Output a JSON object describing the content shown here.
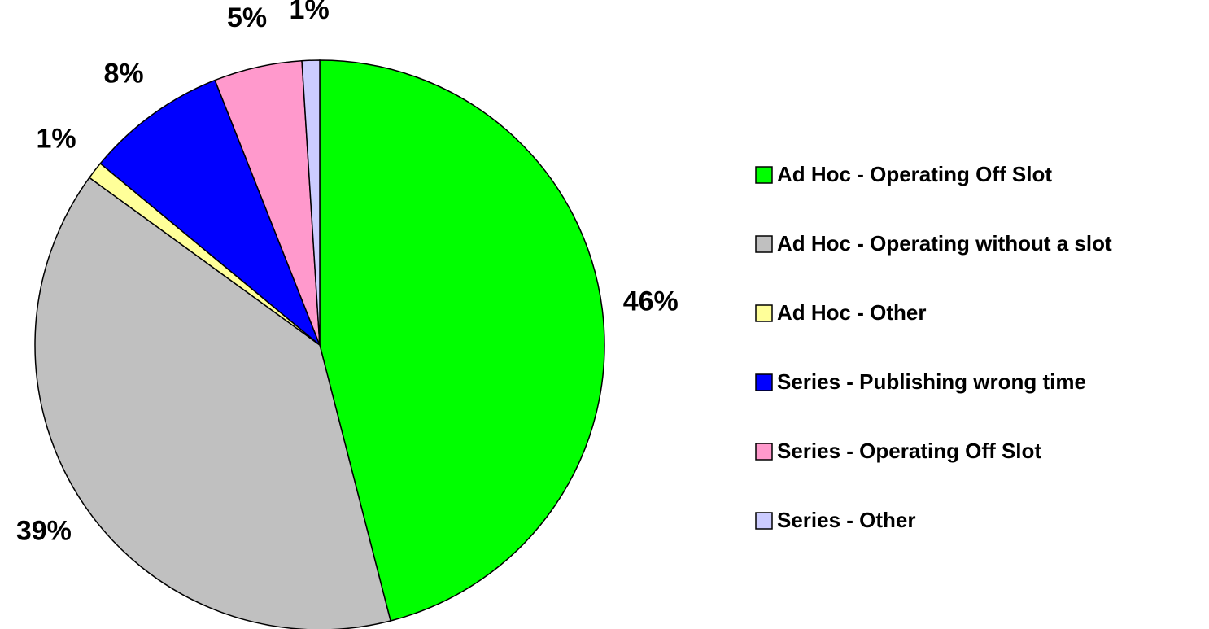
{
  "chart_data": {
    "type": "pie",
    "categories": [
      "Ad Hoc - Operating Off Slot",
      "Ad Hoc - Operating without a slot",
      "Ad Hoc - Other",
      "Series - Publishing wrong time",
      "Series - Operating Off Slot",
      "Series - Other"
    ],
    "values": [
      46,
      39,
      1,
      8,
      5,
      1
    ],
    "value_labels": [
      "46%",
      "39%",
      "1%",
      "8%",
      "5%",
      "1%"
    ],
    "colors": [
      "#00ff00",
      "#c0c0c0",
      "#ffff99",
      "#0000ff",
      "#ff99cc",
      "#ccccff"
    ],
    "legend": "right"
  }
}
